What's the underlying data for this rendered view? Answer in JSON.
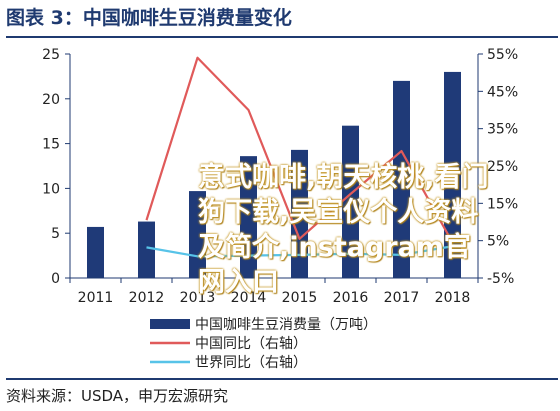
{
  "figure": {
    "title": "图表 3：中国咖啡生豆消费量变化",
    "source": "资料来源：USDA，申万宏源研究"
  },
  "overlay_text": "意式咖啡,朝天核桃,看门狗下载,吴宣仪个人资料及简介,instagram官网入口",
  "colors": {
    "bars": "#1f3a78",
    "china_yoy": "#e05a5a",
    "world_yoy": "#57c3e8",
    "frame": "#1f3a70"
  },
  "chart_data": {
    "type": "bar",
    "categories": [
      "2011",
      "2012",
      "2013",
      "2014",
      "2015",
      "2016",
      "2017",
      "2018"
    ],
    "series": [
      {
        "name": "中国咖啡生豆消费量（万吨）",
        "type": "bar",
        "axis": "left",
        "values": [
          5.7,
          6.3,
          9.7,
          13.6,
          14.3,
          17.0,
          22.0,
          23.0
        ]
      },
      {
        "name": "中国同比（右轴）",
        "type": "line",
        "axis": "right",
        "values": [
          null,
          10.5,
          54.0,
          40.0,
          5.5,
          17.5,
          29.0,
          4.5
        ]
      },
      {
        "name": "世界同比（右轴）",
        "type": "line",
        "axis": "right",
        "values": [
          null,
          3.2,
          0.8,
          1.0,
          1.2,
          1.5,
          1.2,
          3.5
        ]
      }
    ],
    "yleft": {
      "lim": [
        0,
        25
      ],
      "ticks": [
        "0",
        "5",
        "10",
        "15",
        "20",
        "25"
      ]
    },
    "yright": {
      "lim": [
        -5,
        55
      ],
      "ticks": [
        "-5%",
        "5%",
        "15%",
        "25%",
        "35%",
        "45%",
        "55%"
      ]
    },
    "legend": {
      "position": "bottom",
      "items": [
        "中国咖啡生豆消费量（万吨）",
        "中国同比（右轴）",
        "世界同比（右轴）"
      ]
    }
  }
}
